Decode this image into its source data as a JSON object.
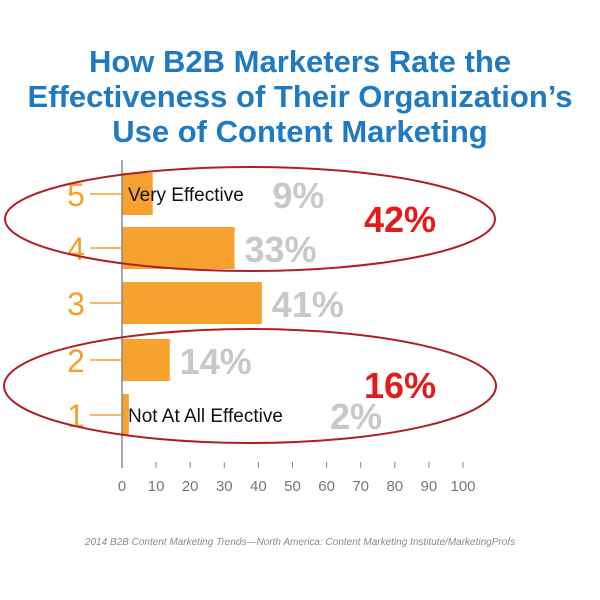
{
  "title_lines": [
    "How B2B Marketers Rate the",
    "Effectiveness of Their Organization’s",
    "Use of Content Marketing"
  ],
  "source": "2014 B2B Content Marketing Trends—North America: Content Marketing Institute/MarketingProfs",
  "colors": {
    "title": "#1f7ac2",
    "bar": "#f7a12f",
    "rating_label": "#f5a02a",
    "percent_label": "#c8c8c8",
    "highlight": "#e31b1b",
    "ellipse": "#b01e24",
    "axis": "#888888"
  },
  "chart_data": {
    "type": "bar",
    "orientation": "horizontal",
    "categories": [
      "5",
      "4",
      "3",
      "2",
      "1"
    ],
    "values": [
      9,
      33,
      41,
      14,
      2
    ],
    "value_labels": [
      "9%",
      "33%",
      "41%",
      "14%",
      "2%"
    ],
    "xlim": [
      0,
      100
    ],
    "xticks": [
      "0",
      "10",
      "20",
      "30",
      "40",
      "50",
      "60",
      "70",
      "80",
      "90",
      "100"
    ],
    "grid": false,
    "annotations": [
      {
        "category": "5",
        "text": "Very Effective"
      },
      {
        "category": "1",
        "text": "Not At All Effective"
      }
    ],
    "groups": [
      {
        "categories": [
          "5",
          "4"
        ],
        "total": "42%"
      },
      {
        "categories": [
          "2",
          "1"
        ],
        "total": "16%"
      }
    ]
  }
}
